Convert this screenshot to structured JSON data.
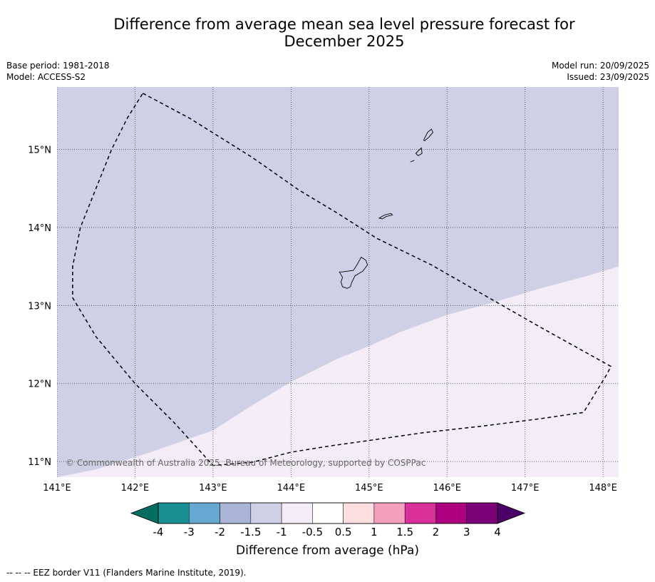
{
  "title": {
    "line1": "Difference from average mean sea level pressure forecast for",
    "line2": "December 2025"
  },
  "info": {
    "base_period": "Base period: 1981-2018",
    "model": "Model: ACCESS-S2",
    "model_run": "Model run: 20/09/2025",
    "issued": "Issued: 23/09/2025"
  },
  "map": {
    "lon_range": [
      141.0,
      148.2
    ],
    "lat_range": [
      10.8,
      15.8
    ],
    "lon_ticks": [
      141,
      142,
      143,
      144,
      145,
      146,
      147,
      148
    ],
    "lon_tick_labels": [
      "141°E",
      "142°E",
      "143°E",
      "144°E",
      "145°E",
      "146°E",
      "147°E",
      "148°E"
    ],
    "lat_ticks": [
      11,
      12,
      13,
      14,
      15
    ],
    "lat_tick_labels": [
      "11°N",
      "12°N",
      "13°N",
      "14°N",
      "15°N"
    ],
    "background_fill": {
      "category": "-1.5 to -1 hPa",
      "color": "#cfd0e5"
    },
    "anomaly_region": {
      "category": "-1 to -0.5 hPa",
      "color": "#f4ecf6",
      "boundary": [
        [
          141.0,
          10.8
        ],
        [
          141.5,
          10.9
        ],
        [
          142.2,
          11.12
        ],
        [
          143.0,
          11.4
        ],
        [
          143.5,
          11.72
        ],
        [
          144.0,
          12.02
        ],
        [
          144.6,
          12.32
        ],
        [
          145.0,
          12.48
        ],
        [
          145.4,
          12.66
        ],
        [
          146.0,
          12.88
        ],
        [
          146.6,
          13.04
        ],
        [
          147.2,
          13.22
        ],
        [
          147.8,
          13.38
        ],
        [
          148.2,
          13.5
        ]
      ]
    },
    "eez_border": [
      [
        142.1,
        15.72
      ],
      [
        142.7,
        15.4
      ],
      [
        143.5,
        14.9
      ],
      [
        144.1,
        14.48
      ],
      [
        144.6,
        14.18
      ],
      [
        145.1,
        13.86
      ],
      [
        145.8,
        13.52
      ],
      [
        146.5,
        13.12
      ],
      [
        147.2,
        12.72
      ],
      [
        148.1,
        12.22
      ],
      [
        148.05,
        12.12
      ],
      [
        147.75,
        11.63
      ],
      [
        147.2,
        11.55
      ],
      [
        146.5,
        11.46
      ],
      [
        145.7,
        11.37
      ],
      [
        145.0,
        11.27
      ],
      [
        144.5,
        11.2
      ],
      [
        144.0,
        11.12
      ],
      [
        143.5,
        10.99
      ],
      [
        143.0,
        10.95
      ],
      [
        142.5,
        11.5
      ],
      [
        142.0,
        12.0
      ],
      [
        141.5,
        12.6
      ],
      [
        141.2,
        13.1
      ],
      [
        141.2,
        13.5
      ],
      [
        141.3,
        14.0
      ],
      [
        141.5,
        14.5
      ],
      [
        141.7,
        15.0
      ],
      [
        141.9,
        15.4
      ],
      [
        142.1,
        15.72
      ]
    ],
    "islands": [
      {
        "name": "Guam",
        "coords": [
          [
            144.65,
            13.43
          ],
          [
            144.8,
            13.45
          ],
          [
            144.85,
            13.53
          ],
          [
            144.9,
            13.62
          ],
          [
            144.96,
            13.58
          ],
          [
            144.98,
            13.52
          ],
          [
            144.92,
            13.44
          ],
          [
            144.82,
            13.38
          ],
          [
            144.78,
            13.3
          ],
          [
            144.76,
            13.24
          ],
          [
            144.72,
            13.22
          ],
          [
            144.66,
            13.24
          ],
          [
            144.64,
            13.3
          ],
          [
            144.66,
            13.36
          ],
          [
            144.62,
            13.43
          ],
          [
            144.65,
            13.43
          ]
        ]
      },
      {
        "name": "Rota",
        "coords": [
          [
            145.13,
            14.12
          ],
          [
            145.2,
            14.16
          ],
          [
            145.28,
            14.18
          ],
          [
            145.3,
            14.16
          ],
          [
            145.22,
            14.14
          ],
          [
            145.17,
            14.11
          ],
          [
            145.13,
            14.12
          ]
        ]
      },
      {
        "name": "Tinian",
        "coords": [
          [
            145.6,
            14.95
          ],
          [
            145.67,
            15.02
          ],
          [
            145.68,
            14.95
          ],
          [
            145.63,
            14.92
          ],
          [
            145.6,
            14.95
          ]
        ]
      },
      {
        "name": "Saipan",
        "coords": [
          [
            145.7,
            15.12
          ],
          [
            145.75,
            15.22
          ],
          [
            145.8,
            15.26
          ],
          [
            145.82,
            15.22
          ],
          [
            145.76,
            15.15
          ],
          [
            145.71,
            15.11
          ],
          [
            145.7,
            15.12
          ]
        ]
      },
      {
        "name": "Aguijan",
        "coords": [
          [
            145.53,
            14.84
          ],
          [
            145.58,
            14.86
          ]
        ]
      }
    ]
  },
  "attribution": "© Commonwealth of Australia 2025, Bureau of Meteorology, supported by COSPPac",
  "colorbar": {
    "ticks": [
      "-4",
      "-3",
      "-2",
      "-1.5",
      "-1",
      "-0.5",
      "0.5",
      "1",
      "1.5",
      "2",
      "3",
      "4"
    ],
    "colors": [
      "#1a8f94",
      "#65a8d0",
      "#aab4d6",
      "#cfd0e5",
      "#f4ecf6",
      "#ffffff",
      "#fddede",
      "#f49fbe",
      "#d93199",
      "#ac007f",
      "#7b0178"
    ],
    "under_color": "#066d60",
    "over_color": "#4a0067",
    "label": "Difference from average (hPa)"
  },
  "footnote": "--  --  -- EEZ border V11 (Flanders Marine Institute, 2019)."
}
